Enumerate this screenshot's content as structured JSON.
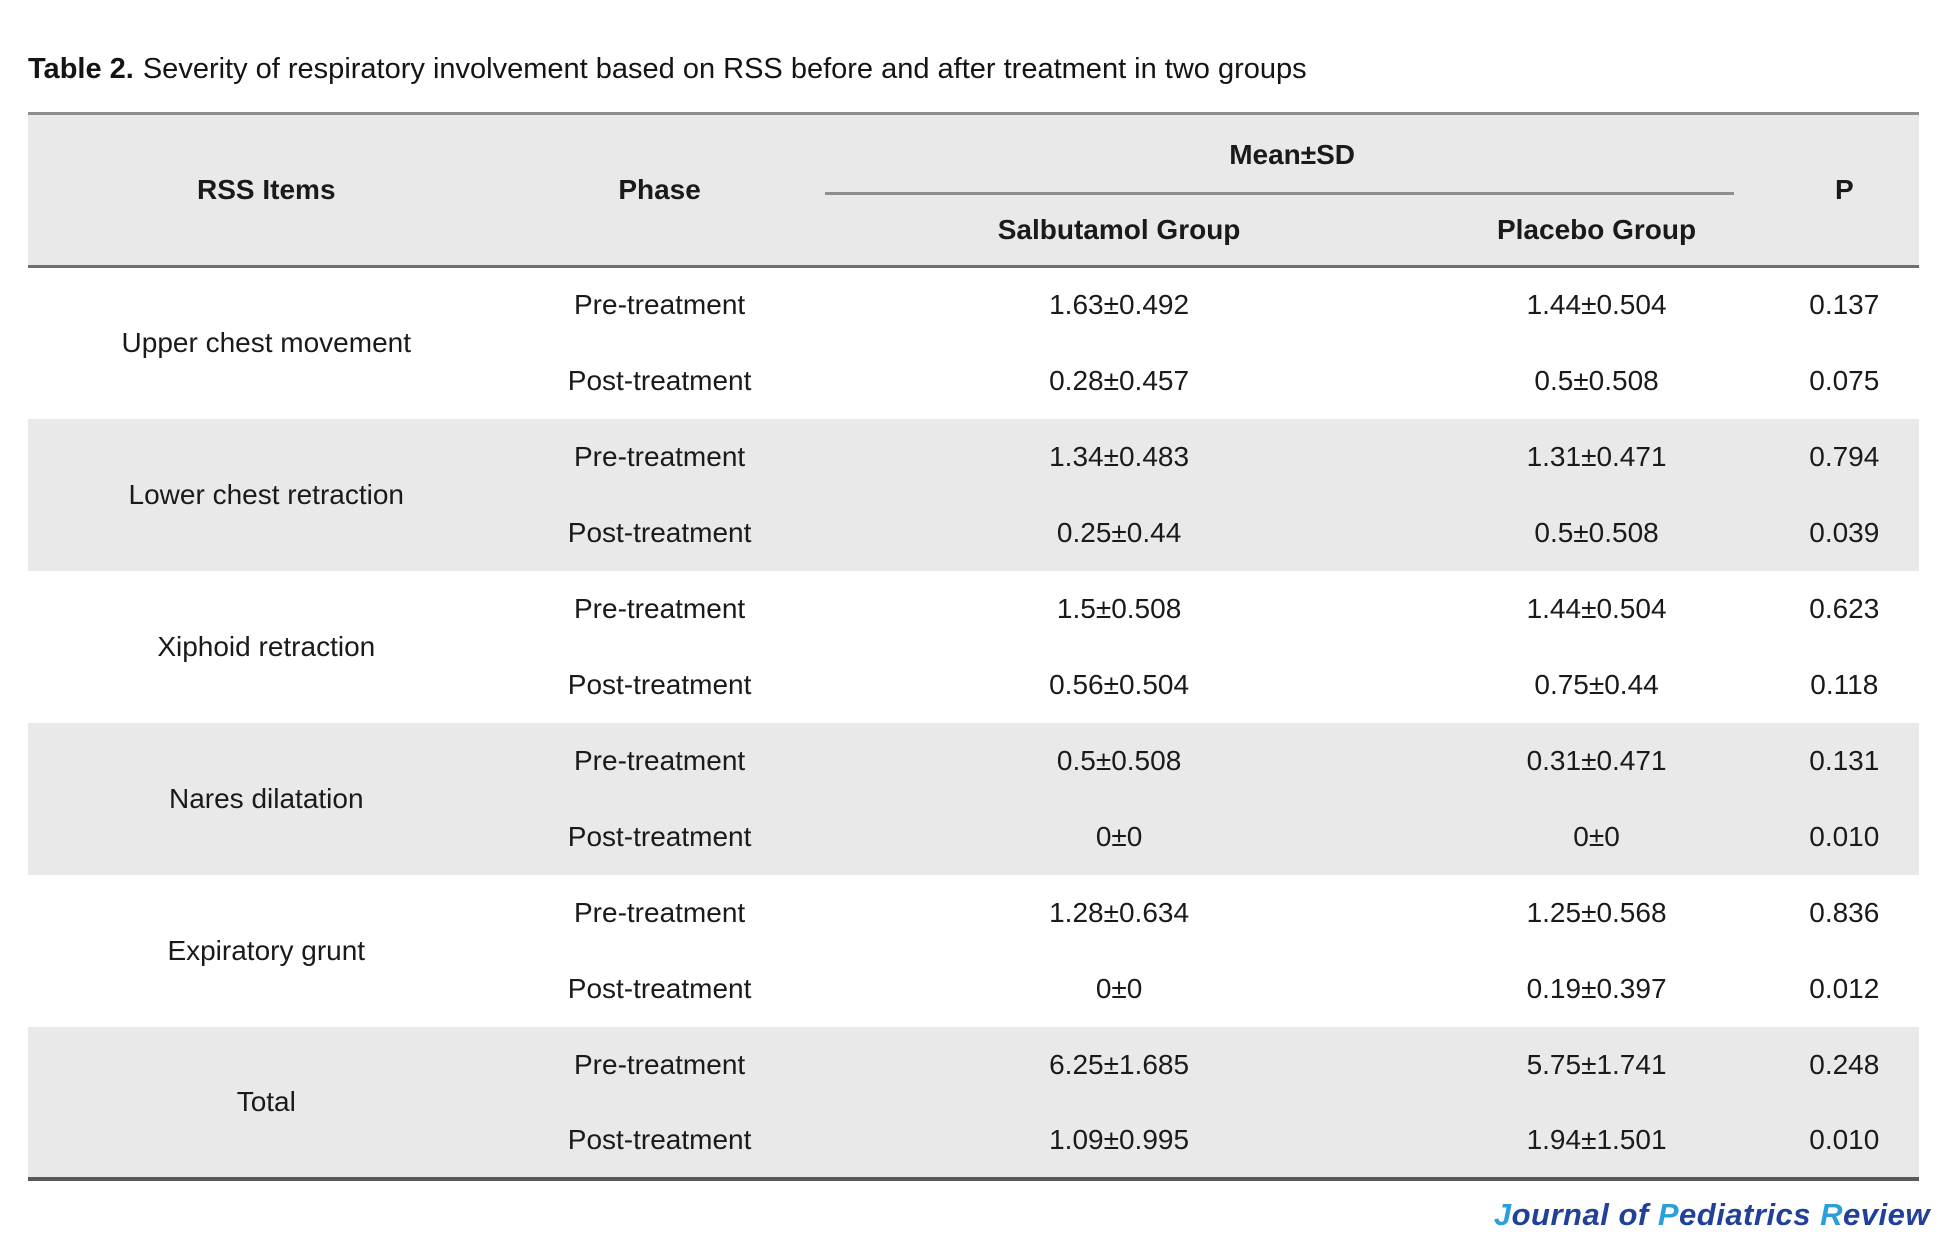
{
  "title": {
    "prefix": "Table 2.",
    "text": "Severity of respiratory involvement based on RSS before and after treatment in two groups"
  },
  "table": {
    "header": {
      "col_item": "RSS Items",
      "col_phase": "Phase",
      "col_meansd": "Mean±SD",
      "col_group1": "Salbutamol Group",
      "col_group2": "Placebo Group",
      "col_p": "P"
    },
    "groups": [
      {
        "item": "Upper chest movement",
        "rows": [
          {
            "phase": "Pre-treatment",
            "salbutamol": "1.63±0.492",
            "placebo": "1.44±0.504",
            "p": "0.137"
          },
          {
            "phase": "Post-treatment",
            "salbutamol": "0.28±0.457",
            "placebo": "0.5±0.508",
            "p": "0.075"
          }
        ]
      },
      {
        "item": "Lower chest retraction",
        "rows": [
          {
            "phase": "Pre-treatment",
            "salbutamol": "1.34±0.483",
            "placebo": "1.31±0.471",
            "p": "0.794"
          },
          {
            "phase": "Post-treatment",
            "salbutamol": "0.25±0.44",
            "placebo": "0.5±0.508",
            "p": "0.039"
          }
        ]
      },
      {
        "item": "Xiphoid retraction",
        "rows": [
          {
            "phase": "Pre-treatment",
            "salbutamol": "1.5±0.508",
            "placebo": "1.44±0.504",
            "p": "0.623"
          },
          {
            "phase": "Post-treatment",
            "salbutamol": "0.56±0.504",
            "placebo": "0.75±0.44",
            "p": "0.118"
          }
        ]
      },
      {
        "item": "Nares dilatation",
        "rows": [
          {
            "phase": "Pre-treatment",
            "salbutamol": "0.5±0.508",
            "placebo": "0.31±0.471",
            "p": "0.131"
          },
          {
            "phase": "Post-treatment",
            "salbutamol": "0±0",
            "placebo": "0±0",
            "p": "0.010"
          }
        ]
      },
      {
        "item": "Expiratory grunt",
        "rows": [
          {
            "phase": "Pre-treatment",
            "salbutamol": "1.28±0.634",
            "placebo": "1.25±0.568",
            "p": "0.836"
          },
          {
            "phase": "Post-treatment",
            "salbutamol": "0±0",
            "placebo": "0.19±0.397",
            "p": "0.012"
          }
        ]
      },
      {
        "item": "Total",
        "rows": [
          {
            "phase": "Pre-treatment",
            "salbutamol": "6.25±1.685",
            "placebo": "5.75±1.741",
            "p": "0.248"
          },
          {
            "phase": "Post-treatment",
            "salbutamol": "1.09±0.995",
            "placebo": "1.94±1.501",
            "p": "0.010"
          }
        ]
      }
    ]
  },
  "footer": {
    "journal_logo": {
      "parts": [
        {
          "text": "J"
        },
        {
          "text": "ournal of "
        },
        {
          "text": "P"
        },
        {
          "text": "ediatrics "
        },
        {
          "text": "R"
        },
        {
          "text": "eview"
        }
      ],
      "accent_color": "#2B9FD9",
      "primary_color": "#21409A"
    }
  },
  "colors": {
    "header_bg": "#e9e9e9",
    "row_shaded_bg": "#e9e9e9",
    "rule_top": "#8f8f8f",
    "rule_header_bottom": "#6f6f6f",
    "rule_bottom": "#595959",
    "text": "#1a1a1a"
  }
}
